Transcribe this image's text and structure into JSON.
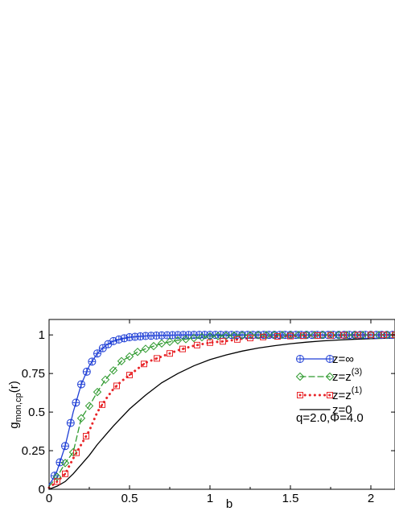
{
  "chart_data": {
    "type": "line",
    "xlabel": "b",
    "ylabel_main": "g",
    "ylabel_sub": "mon,cp",
    "ylabel_tail": "(r)",
    "xlim": [
      0,
      2.15
    ],
    "ylim": [
      0,
      1.1
    ],
    "xticks": [
      0,
      0.5,
      1,
      1.5,
      2
    ],
    "xtick_labels": [
      "0",
      "0.5",
      "1",
      "1.5",
      "2"
    ],
    "yticks": [
      0,
      0.25,
      0.5,
      0.75,
      1
    ],
    "ytick_labels": [
      "0",
      "0.25",
      "0.5",
      "0.75",
      "1"
    ],
    "grid": false,
    "legend_position": "right",
    "annotation": "q=2.0,Φ=4.0",
    "series": [
      {
        "legend_main": "z=∞",
        "legend_sup": "",
        "color": "#1f3fd6",
        "line_style": "solid",
        "marker": "circle-plus",
        "x": [
          0,
          0.02,
          0.05,
          0.1,
          0.15,
          0.2,
          0.25,
          0.3,
          0.35,
          0.4,
          0.45,
          0.5,
          0.6,
          0.7,
          0.8,
          0.9,
          1.0,
          1.2,
          1.4,
          1.6,
          1.8,
          2.0,
          2.15
        ],
        "y": [
          0.03,
          0.06,
          0.12,
          0.28,
          0.5,
          0.68,
          0.8,
          0.88,
          0.93,
          0.96,
          0.975,
          0.985,
          0.993,
          0.997,
          0.999,
          1.0,
          1.0,
          1.0,
          1.0,
          1.0,
          1.0,
          1.0,
          1.0
        ],
        "marker_x": [
          0.034,
          0.067,
          0.1,
          0.134,
          0.167,
          0.2,
          0.234,
          0.267,
          0.3,
          0.334,
          0.367,
          0.4,
          0.434,
          0.467,
          0.5,
          0.534,
          0.567,
          0.6,
          0.634,
          0.667,
          0.7,
          0.734,
          0.767,
          0.8,
          0.834,
          0.867,
          0.9,
          0.934,
          0.967,
          1.0,
          1.034,
          1.067,
          1.1,
          1.134,
          1.167,
          1.2,
          1.234,
          1.267,
          1.3,
          1.334,
          1.367,
          1.4,
          1.434,
          1.467,
          1.5,
          1.534,
          1.567,
          1.6,
          1.634,
          1.667,
          1.7,
          1.734,
          1.767,
          1.8,
          1.834,
          1.867,
          1.9,
          1.934,
          1.967,
          2.0,
          2.034,
          2.067,
          2.1,
          2.134
        ],
        "marker_step": 2
      },
      {
        "legend_main": "z=z",
        "legend_sup": "(3)",
        "color": "#2e9a2e",
        "line_style": "dashed",
        "marker": "diamond",
        "x": [
          0,
          0.05,
          0.1,
          0.15,
          0.2,
          0.25,
          0.3,
          0.35,
          0.4,
          0.45,
          0.5,
          0.55,
          0.6,
          0.7,
          0.8,
          0.9,
          1.0,
          1.1,
          1.2,
          1.4,
          1.6,
          1.8,
          2.0,
          2.15
        ],
        "y": [
          0.02,
          0.08,
          0.17,
          0.24,
          0.46,
          0.54,
          0.63,
          0.71,
          0.77,
          0.83,
          0.86,
          0.89,
          0.91,
          0.945,
          0.965,
          0.98,
          0.99,
          0.995,
          0.998,
          1.0,
          1.0,
          1.0,
          1.0,
          1.0
        ],
        "marker_x": [
          0.05,
          0.1,
          0.15,
          0.2,
          0.25,
          0.3,
          0.35,
          0.4,
          0.45,
          0.5,
          0.55,
          0.6,
          0.65,
          0.7,
          0.75,
          0.8,
          0.85,
          0.9,
          0.95,
          1.0,
          1.05,
          1.1,
          1.15,
          1.2,
          1.25,
          1.3,
          1.35,
          1.4,
          1.45,
          1.5,
          1.55,
          1.6,
          1.65,
          1.7,
          1.75,
          1.8,
          1.85,
          1.9,
          1.95,
          2.0,
          2.05,
          2.1,
          2.15
        ],
        "marker_step": 1
      },
      {
        "legend_main": "z=z",
        "legend_sup": "(1)",
        "color": "#e8262a",
        "line_style": "dotted",
        "marker": "square-dot",
        "x": [
          0,
          0.05,
          0.1,
          0.15,
          0.2,
          0.25,
          0.3,
          0.35,
          0.4,
          0.45,
          0.5,
          0.55,
          0.6,
          0.7,
          0.8,
          0.9,
          1.0,
          1.1,
          1.2,
          1.3,
          1.4,
          1.6,
          1.8,
          2.0,
          2.15
        ],
        "y": [
          0.01,
          0.05,
          0.1,
          0.2,
          0.29,
          0.38,
          0.5,
          0.58,
          0.65,
          0.7,
          0.74,
          0.78,
          0.82,
          0.86,
          0.9,
          0.93,
          0.95,
          0.96,
          0.975,
          0.985,
          0.99,
          0.995,
          0.998,
          1.0,
          1.0
        ],
        "marker_x": [
          0.05,
          0.1,
          0.17,
          0.23,
          0.33,
          0.42,
          0.5,
          0.59,
          0.67,
          0.75,
          0.83,
          0.92,
          1.0,
          1.08,
          1.17,
          1.25,
          1.33,
          1.42,
          1.5,
          1.58,
          1.67,
          1.75,
          1.83,
          1.92,
          2.0,
          2.08,
          2.15
        ],
        "marker_step": 1
      },
      {
        "legend_main": "z=0",
        "legend_sup": "",
        "color": "#000000",
        "line_style": "solid",
        "marker": "none",
        "x": [
          0,
          0.05,
          0.1,
          0.15,
          0.2,
          0.25,
          0.3,
          0.35,
          0.4,
          0.5,
          0.6,
          0.7,
          0.8,
          0.9,
          1.0,
          1.1,
          1.2,
          1.3,
          1.4,
          1.5,
          1.6,
          1.7,
          1.8,
          1.9,
          2.0,
          2.15
        ],
        "y": [
          0.0,
          0.02,
          0.05,
          0.1,
          0.16,
          0.22,
          0.29,
          0.35,
          0.41,
          0.52,
          0.61,
          0.69,
          0.75,
          0.8,
          0.84,
          0.87,
          0.895,
          0.915,
          0.93,
          0.943,
          0.953,
          0.961,
          0.967,
          0.972,
          0.976,
          0.98
        ],
        "marker_x": [],
        "marker_step": 1
      }
    ]
  }
}
